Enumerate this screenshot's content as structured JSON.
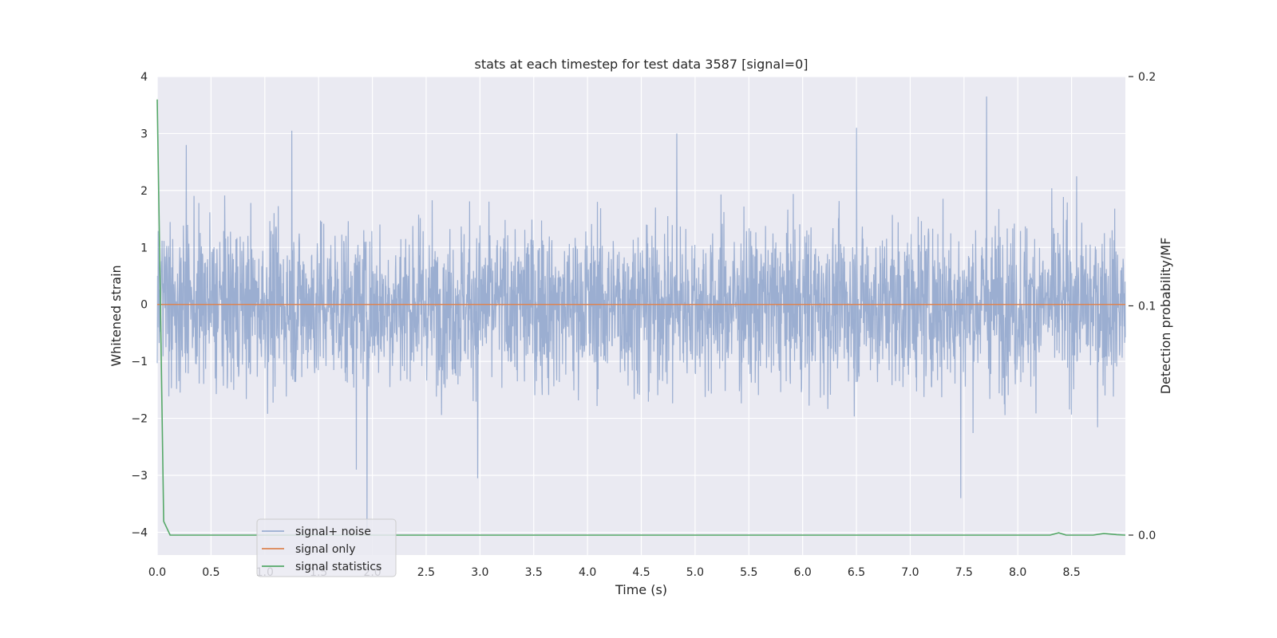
{
  "chart_data": {
    "type": "line",
    "title": "stats at each timestep for test data 3587 [signal=0]",
    "xlabel": "Time (s)",
    "ylabel": "Whitened strain",
    "y2label": "Detection probability/MF",
    "xlim": [
      0.0,
      9.0
    ],
    "ylim": [
      -4.4,
      4.0
    ],
    "y2lim": [
      -0.0087,
      0.2
    ],
    "grid": true,
    "legend_position": "lower-left",
    "x_ticks": [
      "0.0",
      "0.5",
      "1.0",
      "1.5",
      "2.0",
      "2.5",
      "3.0",
      "3.5",
      "4.0",
      "4.5",
      "5.0",
      "5.5",
      "6.0",
      "6.5",
      "7.0",
      "7.5",
      "8.0",
      "8.5"
    ],
    "y_ticks": [
      "−4",
      "−3",
      "−2",
      "−1",
      "0",
      "1",
      "2",
      "3",
      "4"
    ],
    "y2_ticks": [
      "0.0",
      "0.1",
      "0.2"
    ],
    "series": [
      {
        "name": "signal+ noise",
        "axis": "left",
        "color": "#4c72b0",
        "opacity": 0.5,
        "style": "dense noise, std approx 0.7",
        "x_range": [
          0.0,
          9.0
        ],
        "peaks_high": [
          [
            1.25,
            3.05
          ],
          [
            4.83,
            3.0
          ],
          [
            6.5,
            3.1
          ],
          [
            7.71,
            3.65
          ],
          [
            0.27,
            2.8
          ]
        ],
        "peaks_low": [
          [
            1.95,
            -4.0
          ],
          [
            7.47,
            -3.4
          ],
          [
            2.98,
            -3.05
          ],
          [
            1.85,
            -2.9
          ]
        ]
      },
      {
        "name": "signal only",
        "axis": "left",
        "color": "#dd8452",
        "x": [
          0.0,
          9.0
        ],
        "y": [
          0.0,
          0.0
        ]
      },
      {
        "name": "signal statistics",
        "axis": "right",
        "color": "#55a868",
        "x": [
          0.0,
          0.03,
          0.06,
          0.12,
          8.2,
          8.3,
          8.38,
          8.45,
          8.55,
          8.7,
          8.8,
          8.92,
          9.0
        ],
        "y": [
          0.19,
          0.1,
          0.006,
          0.0,
          0.0,
          0.0,
          0.001,
          0.0,
          0.0,
          0.0,
          0.0007,
          0.0002,
          0.0
        ]
      }
    ]
  }
}
